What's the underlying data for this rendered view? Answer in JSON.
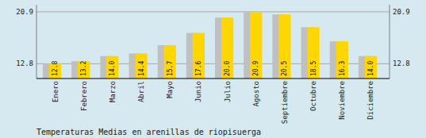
{
  "chart_data": {
    "type": "bar",
    "title": "Temperaturas Medias en arenillas de riopisuerga",
    "categories": [
      "Enero",
      "Febrero",
      "Marzo",
      "Abril",
      "Mayo",
      "Junio",
      "Julio",
      "Agosto",
      "Septiembre",
      "Octubre",
      "Noviembre",
      "Diciembre"
    ],
    "values": [
      12.8,
      13.2,
      14.0,
      14.4,
      15.7,
      17.6,
      20.0,
      20.9,
      20.5,
      18.5,
      16.3,
      14.0
    ],
    "value_labels": [
      "12.8",
      "13.2",
      "14.0",
      "14.4",
      "15.7",
      "17.6",
      "20.0",
      "20.9",
      "20.5",
      "18.5",
      "16.3",
      "14.0"
    ],
    "color": "#FFD700",
    "ylim": [
      10.5,
      22.0
    ],
    "yticks": [
      12.8,
      20.9
    ],
    "y2lim": [
      10.5,
      22.0
    ],
    "y2ticks": [
      12.8,
      20.9
    ],
    "grid": true,
    "data_labels": true
  }
}
